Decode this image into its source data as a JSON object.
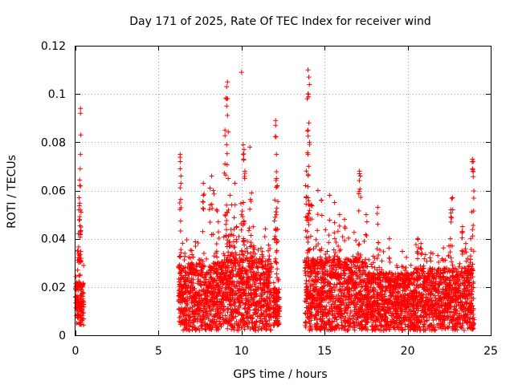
{
  "chart_data": {
    "type": "scatter",
    "title": "Day 171 of 2025, Rate Of TEC Index for receiver wind",
    "xlabel": "GPS time / hours",
    "ylabel": "ROTI / TECUs",
    "xlim": [
      0,
      25
    ],
    "ylim": [
      0,
      0.12
    ],
    "xticks": [
      0,
      5,
      10,
      15,
      20,
      25
    ],
    "xtick_labels": [
      "0",
      "5",
      "10",
      "15",
      "20",
      "25"
    ],
    "yticks": [
      0,
      0.02,
      0.04,
      0.06,
      0.08,
      0.1,
      0.12
    ],
    "ytick_labels": [
      "0",
      "0.02",
      "0.04",
      "0.06",
      "0.08",
      "0.1",
      "0.12"
    ],
    "grid": true,
    "marker": "+",
    "color": "#ff0000",
    "series": [
      {
        "name": "ROTI",
        "segments": [
          {
            "x_start": 0.0,
            "x_end": 0.5,
            "base_low": 0.004,
            "base_high": 0.022,
            "spread": 0.01
          },
          {
            "x_start": 6.2,
            "x_end": 8.8,
            "base_low": 0.002,
            "base_high": 0.03,
            "spread": 0.012
          },
          {
            "x_start": 8.8,
            "x_end": 11.8,
            "base_low": 0.002,
            "base_high": 0.032,
            "spread": 0.014
          },
          {
            "x_start": 11.9,
            "x_end": 12.3,
            "base_low": 0.004,
            "base_high": 0.02,
            "spread": 0.01
          },
          {
            "x_start": 13.8,
            "x_end": 17.5,
            "base_low": 0.002,
            "base_high": 0.032,
            "spread": 0.014
          },
          {
            "x_start": 17.5,
            "x_end": 20.5,
            "base_low": 0.002,
            "base_high": 0.026,
            "spread": 0.01
          },
          {
            "x_start": 20.5,
            "x_end": 24.0,
            "base_low": 0.002,
            "base_high": 0.028,
            "spread": 0.012
          }
        ],
        "peaks": [
          {
            "x": 0.15,
            "y": 0.035
          },
          {
            "x": 0.2,
            "y": 0.052
          },
          {
            "x": 0.22,
            "y": 0.057
          },
          {
            "x": 0.25,
            "y": 0.062
          },
          {
            "x": 0.28,
            "y": 0.069
          },
          {
            "x": 0.3,
            "y": 0.075
          },
          {
            "x": 0.32,
            "y": 0.083
          },
          {
            "x": 0.3,
            "y": 0.092
          },
          {
            "x": 0.3,
            "y": 0.094
          },
          {
            "x": 0.3,
            "y": 0.043
          },
          {
            "x": 0.32,
            "y": 0.031
          },
          {
            "x": 6.3,
            "y": 0.075
          },
          {
            "x": 6.3,
            "y": 0.069
          },
          {
            "x": 6.35,
            "y": 0.066
          },
          {
            "x": 6.35,
            "y": 0.063
          },
          {
            "x": 7.7,
            "y": 0.058
          },
          {
            "x": 7.7,
            "y": 0.063
          },
          {
            "x": 8.1,
            "y": 0.061
          },
          {
            "x": 8.2,
            "y": 0.066
          },
          {
            "x": 8.3,
            "y": 0.06
          },
          {
            "x": 8.5,
            "y": 0.052
          },
          {
            "x": 8.6,
            "y": 0.047
          },
          {
            "x": 9.0,
            "y": 0.085
          },
          {
            "x": 9.1,
            "y": 0.079
          },
          {
            "x": 9.1,
            "y": 0.095
          },
          {
            "x": 9.15,
            "y": 0.098
          },
          {
            "x": 9.1,
            "y": 0.103
          },
          {
            "x": 9.15,
            "y": 0.105
          },
          {
            "x": 9.0,
            "y": 0.071
          },
          {
            "x": 9.2,
            "y": 0.065
          },
          {
            "x": 9.3,
            "y": 0.058
          },
          {
            "x": 9.4,
            "y": 0.054
          },
          {
            "x": 9.6,
            "y": 0.063
          },
          {
            "x": 9.7,
            "y": 0.045
          },
          {
            "x": 10.0,
            "y": 0.109
          },
          {
            "x": 10.1,
            "y": 0.079
          },
          {
            "x": 10.15,
            "y": 0.077
          },
          {
            "x": 10.1,
            "y": 0.075
          },
          {
            "x": 10.2,
            "y": 0.068
          },
          {
            "x": 10.0,
            "y": 0.05
          },
          {
            "x": 10.1,
            "y": 0.055
          },
          {
            "x": 10.5,
            "y": 0.078
          },
          {
            "x": 10.6,
            "y": 0.059
          },
          {
            "x": 10.7,
            "y": 0.045
          },
          {
            "x": 12.05,
            "y": 0.089
          },
          {
            "x": 12.05,
            "y": 0.087
          },
          {
            "x": 12.1,
            "y": 0.075
          },
          {
            "x": 12.1,
            "y": 0.065
          },
          {
            "x": 12.15,
            "y": 0.062
          },
          {
            "x": 12.0,
            "y": 0.056
          },
          {
            "x": 12.1,
            "y": 0.05
          },
          {
            "x": 12.15,
            "y": 0.044
          },
          {
            "x": 12.0,
            "y": 0.04
          },
          {
            "x": 14.0,
            "y": 0.11
          },
          {
            "x": 14.05,
            "y": 0.107
          },
          {
            "x": 14.0,
            "y": 0.1
          },
          {
            "x": 13.95,
            "y": 0.098
          },
          {
            "x": 14.05,
            "y": 0.088
          },
          {
            "x": 14.0,
            "y": 0.085
          },
          {
            "x": 14.1,
            "y": 0.08
          },
          {
            "x": 14.0,
            "y": 0.075
          },
          {
            "x": 13.9,
            "y": 0.068
          },
          {
            "x": 13.85,
            "y": 0.062
          },
          {
            "x": 14.0,
            "y": 0.057
          },
          {
            "x": 14.2,
            "y": 0.054
          },
          {
            "x": 14.6,
            "y": 0.06
          },
          {
            "x": 14.8,
            "y": 0.056
          },
          {
            "x": 15.3,
            "y": 0.058
          },
          {
            "x": 15.6,
            "y": 0.055
          },
          {
            "x": 15.9,
            "y": 0.05
          },
          {
            "x": 16.2,
            "y": 0.048
          },
          {
            "x": 17.1,
            "y": 0.067
          },
          {
            "x": 17.15,
            "y": 0.066
          },
          {
            "x": 17.1,
            "y": 0.068
          },
          {
            "x": 17.5,
            "y": 0.05
          },
          {
            "x": 18.2,
            "y": 0.053
          },
          {
            "x": 18.2,
            "y": 0.046
          },
          {
            "x": 18.9,
            "y": 0.04
          },
          {
            "x": 20.6,
            "y": 0.04
          },
          {
            "x": 20.8,
            "y": 0.038
          },
          {
            "x": 22.6,
            "y": 0.052
          },
          {
            "x": 22.7,
            "y": 0.057
          },
          {
            "x": 22.6,
            "y": 0.049
          },
          {
            "x": 23.3,
            "y": 0.045
          },
          {
            "x": 23.3,
            "y": 0.043
          },
          {
            "x": 23.9,
            "y": 0.073
          },
          {
            "x": 23.95,
            "y": 0.072
          },
          {
            "x": 23.9,
            "y": 0.069
          },
          {
            "x": 23.95,
            "y": 0.068
          },
          {
            "x": 23.8,
            "y": 0.04
          },
          {
            "x": 23.5,
            "y": 0.038
          }
        ]
      }
    ]
  }
}
